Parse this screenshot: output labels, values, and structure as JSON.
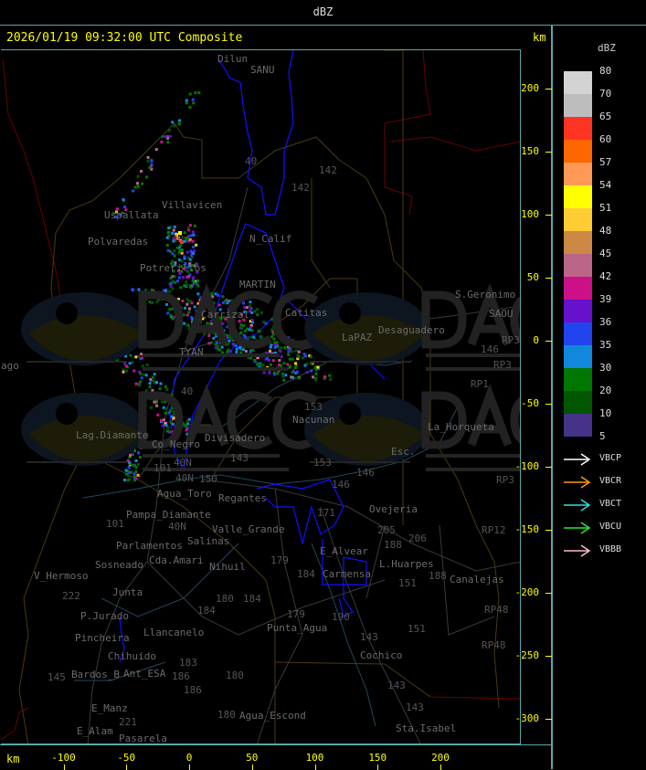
{
  "header": {
    "title": "dBZ"
  },
  "map": {
    "timestamp": "2026/01/19 09:32:00 UTC Composite",
    "unit_top": "km",
    "unit_bottom": "km",
    "x_ticks": [
      "-100",
      "-50",
      "0",
      "50",
      "100",
      "150",
      "200"
    ],
    "y_ticks": [
      "200",
      "150",
      "100",
      "50",
      "0",
      "-50",
      "-100",
      "-150",
      "-200",
      "-250",
      "-300"
    ],
    "watermark": {
      "logo": "DACC",
      "line1": "Dirección de Agricultura",
      "line2": "y Contingencias Climáticas",
      "url": "http://www.contingencias.mendoza.gov.ar"
    },
    "places": [
      "Dilun",
      "SANU",
      "Villavicen",
      "Uspallata",
      "Polvaredas",
      "N_Calif",
      "Potrerillos",
      "MARTIN",
      "Catitas",
      "Carrizal",
      "S.Geronimo",
      "SAOU",
      "Desaguadero",
      "LaPAZ",
      "ago",
      "Lag.Diamante",
      "Co_Negro",
      "Divisadero",
      "Nacunan",
      "La_Horqueta",
      "Esc.",
      "Agua_Toro",
      "Pampa_Diamante",
      "Valle_Grande",
      "Salinas",
      "Cda.Amari",
      "Parlamentos",
      "Sosneado",
      "Ovejeria",
      "Nihuil",
      "V_Hermoso",
      "Junta",
      "P.Jurado",
      "Pincheira",
      "Llancanelo",
      "Chihuido",
      "Ant_ESA",
      "Bardos_B",
      "Punta_Agua",
      "E_Alvear",
      "Carmensa",
      "L.Huarpes",
      "Canalejas",
      "Cochico",
      "E_Manz",
      "E_Alam",
      "Pasarela",
      "Agua_Escond",
      "Sta.Isabel",
      "Regantes",
      "TYAN"
    ],
    "routes": [
      "40",
      "142",
      "142",
      "40",
      "153",
      "146",
      "RP3",
      "RP3",
      "RP1",
      "RP3",
      "RP12",
      "RP48",
      "RP48",
      "101",
      "150",
      "143",
      "153",
      "146",
      "146",
      "40N",
      "40N",
      "40N",
      "101",
      "179",
      "184",
      "151",
      "151",
      "143",
      "143",
      "143",
      "180",
      "184",
      "184",
      "180",
      "186",
      "183",
      "186",
      "180",
      "145",
      "221",
      "222",
      "206",
      "205",
      "188",
      "188",
      "179",
      "190",
      "171",
      "40"
    ]
  },
  "legend": {
    "title": "dBZ",
    "scale": [
      {
        "label": "80",
        "color": "#d3d3d3"
      },
      {
        "label": "70",
        "color": "#bdbdbd"
      },
      {
        "label": "65",
        "color": "#ff3322"
      },
      {
        "label": "60",
        "color": "#ff6600"
      },
      {
        "label": "57",
        "color": "#ff9955"
      },
      {
        "label": "54",
        "color": "#ffff00"
      },
      {
        "label": "51",
        "color": "#ffcc33"
      },
      {
        "label": "48",
        "color": "#cc8844"
      },
      {
        "label": "45",
        "color": "#bb6688"
      },
      {
        "label": "42",
        "color": "#cc1188"
      },
      {
        "label": "39",
        "color": "#6611cc"
      },
      {
        "label": "36",
        "color": "#2244ee"
      },
      {
        "label": "35",
        "color": "#1188dd"
      },
      {
        "label": "30",
        "color": "#007700"
      },
      {
        "label": "20",
        "color": "#005500"
      },
      {
        "label": "10",
        "color": "#443388"
      },
      {
        "label": "5",
        "color": ""
      }
    ],
    "stations": [
      {
        "name": "VBCP",
        "color": "#ffffff"
      },
      {
        "name": "VBCR",
        "color": "#ff9900"
      },
      {
        "name": "VBCT",
        "color": "#33dddd"
      },
      {
        "name": "VBCU",
        "color": "#22ee22"
      },
      {
        "name": "VBBB",
        "color": "#ffbbcc"
      }
    ]
  }
}
